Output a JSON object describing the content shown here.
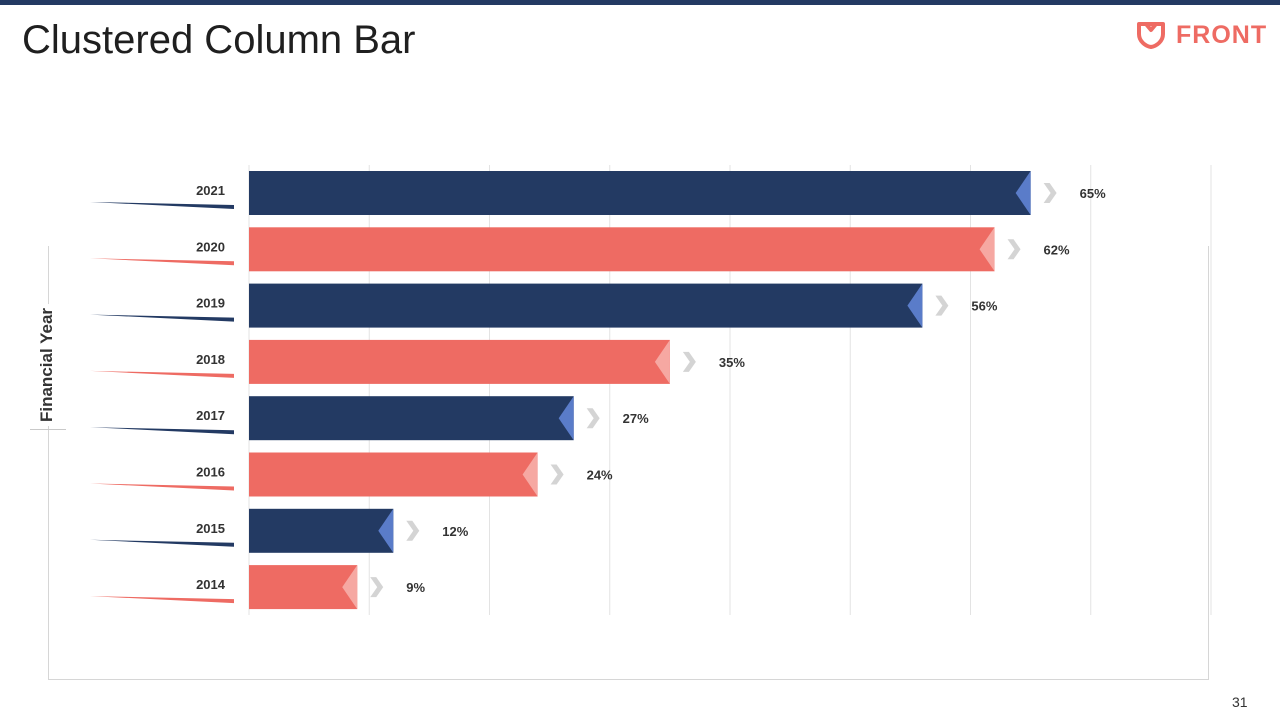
{
  "slide": {
    "title": "Clustered Column Bar",
    "page_number": "31"
  },
  "logo": {
    "text": "FRONT",
    "icon": "heart-shield-icon",
    "color": "#ee6b63"
  },
  "colors": {
    "navy": "#233a63",
    "coral": "#ee6b63",
    "navy_tip": "#5a7cc9",
    "coral_tip": "#f6a8a2",
    "arrow": "#d4d4d4",
    "gridline": "#e3e3e3"
  },
  "chart_data": {
    "type": "bar",
    "orientation": "horizontal",
    "title": "",
    "xlabel": "",
    "ylabel": "Financial Year",
    "categories": [
      "2021",
      "2020",
      "2019",
      "2018",
      "2017",
      "2016",
      "2015",
      "2014"
    ],
    "values": [
      65,
      62,
      56,
      35,
      27,
      24,
      12,
      9
    ],
    "value_labels": [
      "65%",
      "62%",
      "56%",
      "35%",
      "27%",
      "24%",
      "12%",
      "9%"
    ],
    "bar_colors": [
      "navy",
      "coral",
      "navy",
      "coral",
      "navy",
      "coral",
      "navy",
      "coral"
    ],
    "xlim": [
      0,
      80
    ],
    "grid": true,
    "legend": "none"
  }
}
